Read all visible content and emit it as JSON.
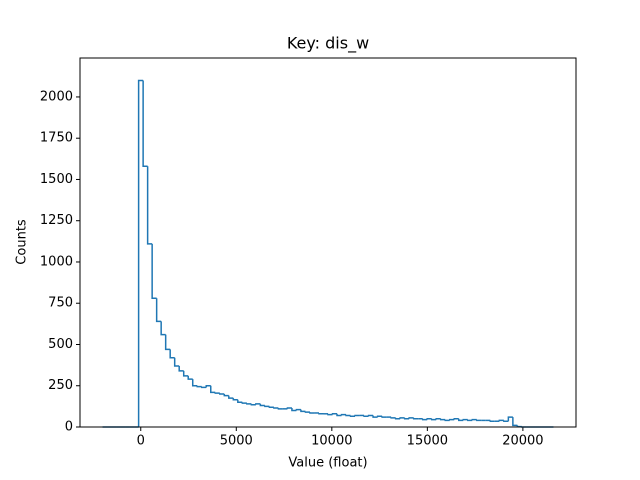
{
  "chart_data": {
    "type": "histogram",
    "title": "Key: dis_w",
    "x_label": "Value (float)",
    "y_label": "Counts",
    "color": "#1f77b4",
    "bins": [
      -2000,
      -1764,
      -1528,
      -1292,
      -1056,
      -820,
      -584,
      -348,
      -112,
      124,
      360,
      596,
      832,
      1068,
      1304,
      1540,
      1776,
      2012,
      2248,
      2484,
      2720,
      2956,
      3192,
      3428,
      3664,
      3900,
      4136,
      4372,
      4608,
      4844,
      5080,
      5316,
      5552,
      5788,
      6024,
      6260,
      6496,
      6732,
      6968,
      7204,
      7440,
      7676,
      7912,
      8148,
      8384,
      8620,
      8856,
      9092,
      9328,
      9564,
      9800,
      10036,
      10272,
      10508,
      10744,
      10980,
      11216,
      11452,
      11688,
      11924,
      12160,
      12396,
      12632,
      12868,
      13104,
      13340,
      13576,
      13812,
      14048,
      14284,
      14520,
      14756,
      14992,
      15228,
      15464,
      15700,
      15936,
      16172,
      16408,
      16644,
      16880,
      17116,
      17352,
      17588,
      17824,
      18060,
      18296,
      18532,
      18768,
      19004,
      19240,
      19476,
      19712,
      19948,
      20184,
      20420,
      20656,
      20892,
      21128,
      21364,
      21600
    ],
    "counts": [
      0,
      0,
      0,
      0,
      0,
      0,
      0,
      0,
      2100,
      1580,
      1110,
      780,
      640,
      560,
      470,
      420,
      370,
      340,
      310,
      290,
      250,
      245,
      240,
      250,
      210,
      205,
      200,
      190,
      175,
      165,
      150,
      145,
      140,
      135,
      140,
      130,
      125,
      120,
      115,
      110,
      110,
      115,
      100,
      105,
      95,
      90,
      85,
      85,
      80,
      80,
      75,
      80,
      70,
      75,
      70,
      65,
      70,
      70,
      65,
      70,
      60,
      65,
      60,
      60,
      55,
      50,
      55,
      50,
      55,
      50,
      50,
      45,
      50,
      45,
      50,
      45,
      40,
      45,
      50,
      40,
      45,
      40,
      45,
      40,
      40,
      40,
      35,
      35,
      40,
      35,
      60,
      10,
      2,
      0,
      0,
      0,
      0,
      0,
      0,
      0
    ],
    "xlim": [
      -3180,
      22780
    ],
    "xticks": [
      0,
      5000,
      10000,
      15000,
      20000
    ],
    "ylim": [
      0,
      2236
    ],
    "yticks": [
      0,
      250,
      500,
      750,
      1000,
      1250,
      1500,
      1750,
      2000
    ]
  }
}
